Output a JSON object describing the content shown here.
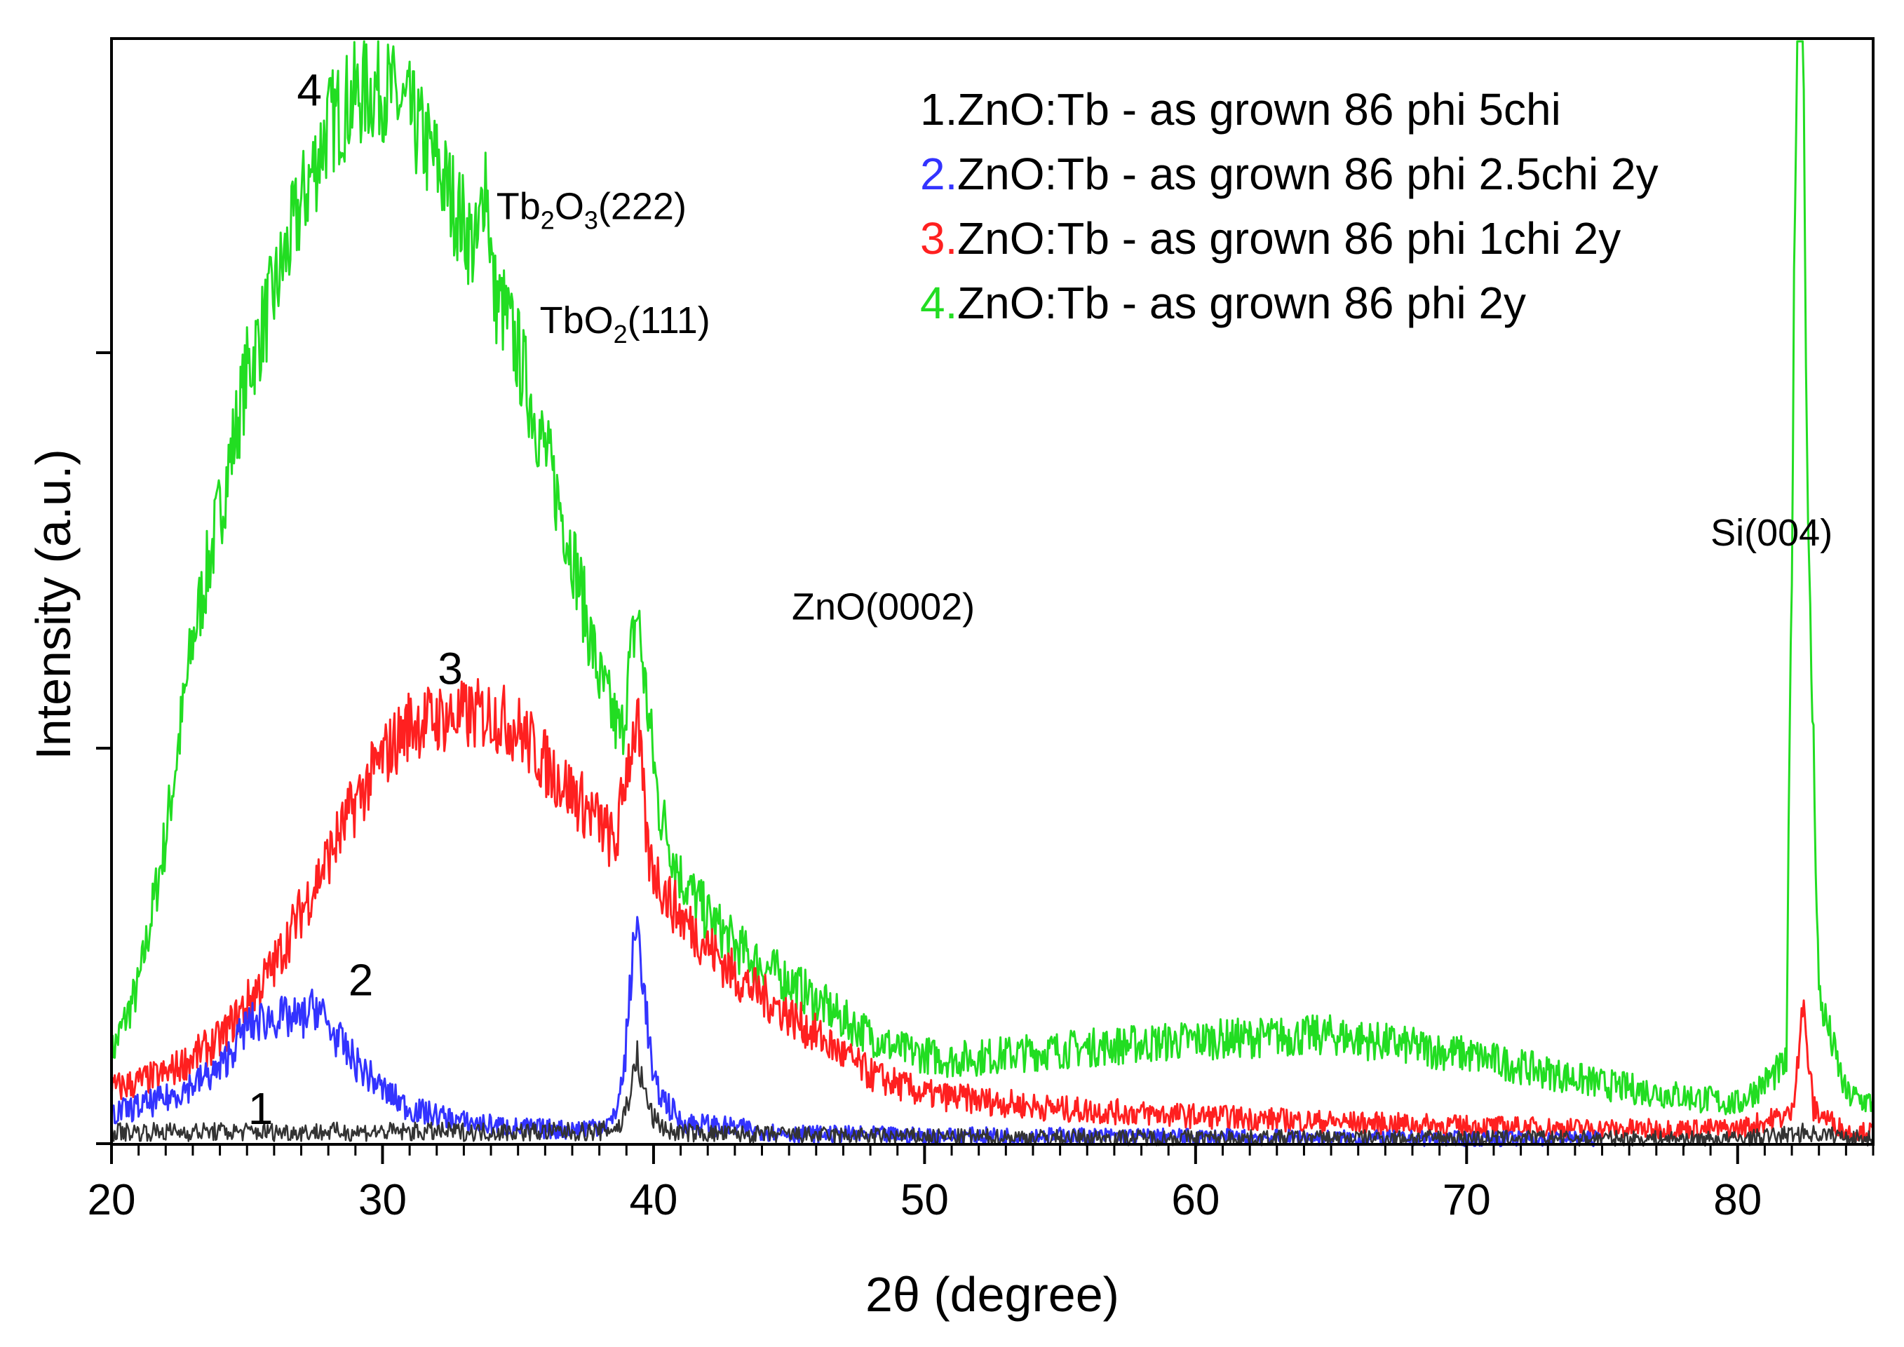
{
  "chart_data": {
    "type": "line",
    "xlabel": "2θ (degree)",
    "ylabel": "Intensity (a.u.)",
    "xlim": [
      20,
      85
    ],
    "ylim": [
      0,
      1100
    ],
    "x_major_ticks": [
      20,
      30,
      40,
      50,
      60,
      70,
      80
    ],
    "x_minor_step": 1,
    "y_ticks": [
      0,
      400,
      800,
      1200
    ],
    "grid": false,
    "legend_position": "top-right",
    "legend": [
      {
        "num": "1.",
        "text": "ZnO:Tb - as grown 86 phi 5chi",
        "color": "#000000"
      },
      {
        "num": "2.",
        "text": "ZnO:Tb - as grown 86 phi 2.5chi 2y",
        "color": "#3333ff"
      },
      {
        "num": "3.",
        "text": "ZnO:Tb - as grown 86 phi 1chi 2y",
        "color": "#ff2020"
      },
      {
        "num": "4.",
        "text": "ZnO:Tb - as grown 86 phi 2y",
        "color": "#22dd22"
      }
    ],
    "series": [
      {
        "label": "1",
        "color": "#333333",
        "x": [
          20,
          30,
          38,
          38.8,
          39.2,
          39.4,
          39.6,
          40,
          40.6,
          42,
          50,
          60,
          70,
          80,
          82.2,
          82.5,
          82.8,
          85
        ],
        "y": [
          12,
          12,
          12,
          18,
          60,
          88,
          58,
          25,
          12,
          10,
          7,
          6,
          6,
          5,
          10,
          12,
          10,
          5
        ]
      },
      {
        "label": "2",
        "color": "#3333ff",
        "x": [
          20,
          22,
          24,
          25,
          26,
          27,
          27.6,
          28,
          29,
          30,
          31,
          33,
          35,
          37,
          38.5,
          38.9,
          39.2,
          39.4,
          39.6,
          40,
          41,
          45,
          50,
          55,
          60,
          65,
          70,
          75
        ],
        "y": [
          30,
          45,
          75,
          120,
          128,
          125,
          140,
          118,
          82,
          55,
          35,
          22,
          16,
          14,
          22,
          70,
          180,
          225,
          170,
          60,
          22,
          10,
          8,
          8,
          7,
          6,
          5,
          5
        ]
      },
      {
        "label": "3",
        "color": "#ff2020",
        "x": [
          20,
          22,
          24,
          26,
          28,
          29,
          30,
          31,
          32,
          33,
          34,
          35,
          36,
          37,
          38,
          38.6,
          39,
          39.4,
          39.8,
          40.5,
          41,
          42,
          43,
          45,
          48,
          50,
          55,
          60,
          65,
          70,
          75,
          80,
          82,
          82.4,
          82.8,
          84,
          85
        ],
        "y": [
          55,
          70,
          105,
          180,
          290,
          345,
          390,
          425,
          430,
          432,
          435,
          420,
          385,
          355,
          325,
          300,
          380,
          430,
          290,
          250,
          230,
          200,
          170,
          130,
          70,
          50,
          35,
          28,
          22,
          18,
          15,
          15,
          30,
          140,
          35,
          12,
          12
        ]
      },
      {
        "label": "4",
        "color": "#22dd22",
        "x": [
          20,
          21,
          22,
          23,
          24,
          25,
          26,
          27,
          28,
          29,
          30,
          31,
          32,
          33,
          33.5,
          33.8,
          34.1,
          34.5,
          35,
          36,
          37,
          38,
          38.8,
          39.2,
          39.4,
          39.7,
          40.2,
          41,
          42,
          43,
          44,
          45,
          47,
          49,
          51,
          55,
          60,
          65,
          70,
          75,
          80,
          81.8,
          82,
          82.2,
          82.4,
          82.6,
          82.8,
          83,
          84,
          85
        ],
        "y": [
          90,
          160,
          310,
          510,
          640,
          780,
          860,
          950,
          1030,
          1060,
          1070,
          1040,
          990,
          930,
          900,
          990,
          860,
          840,
          800,
          700,
          600,
          470,
          410,
          500,
          540,
          460,
          340,
          270,
          230,
          200,
          180,
          165,
          125,
          95,
          85,
          95,
          105,
          110,
          90,
          60,
          40,
          80,
          600,
          1200,
          1180,
          600,
          400,
          150,
          50,
          40
        ]
      }
    ],
    "curve_labels": [
      {
        "text": "1",
        "x": 25.5,
        "y": 20
      },
      {
        "text": "2",
        "x": 29.2,
        "y": 150
      },
      {
        "text": "3",
        "x": 32.5,
        "y": 465
      },
      {
        "text": "4",
        "x": 27.3,
        "y": 1050
      }
    ],
    "annotations": [
      {
        "base": "Tb",
        "sub1": "2",
        "mid": "O",
        "sub2": "3",
        "tail": "(222)",
        "x": 34.2,
        "y": 935
      },
      {
        "base": "TbO",
        "sub1": "2",
        "mid": "",
        "sub2": "",
        "tail": "(111)",
        "x": 35.8,
        "y": 820
      },
      {
        "base": "ZnO(0002)",
        "sub1": "",
        "mid": "",
        "sub2": "",
        "tail": "",
        "x": 45.1,
        "y": 530
      },
      {
        "base": "Si(004)",
        "sub1": "",
        "mid": "",
        "sub2": "",
        "tail": "",
        "x": 79.0,
        "y": 605
      }
    ]
  }
}
